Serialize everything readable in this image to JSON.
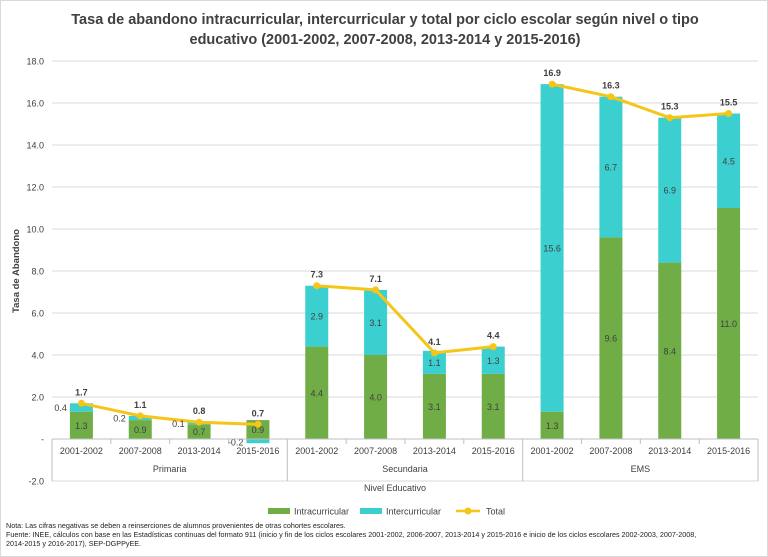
{
  "chart_data": {
    "type": "bar",
    "title_lines": [
      "Tasa de abandono intracurricular, intercurricular y total por ciclo escolar según nivel o tipo",
      "educativo (2001-2002, 2007-2008, 2013-2014 y 2015-2016)"
    ],
    "ylabel": "Tasa de Abandono",
    "xlabel": "Nivel Educativo",
    "ylim": [
      -2.0,
      18.0
    ],
    "yticks": [
      "-2.0",
      "-",
      "2.0",
      "4.0",
      "6.0",
      "8.0",
      "10.0",
      "12.0",
      "14.0",
      "16.0",
      "18.0"
    ],
    "ytick_values": [
      -2,
      0,
      2,
      4,
      6,
      8,
      10,
      12,
      14,
      16,
      18
    ],
    "groups": [
      {
        "name": "Primaria",
        "categories": [
          "2001-2002",
          "2007-2008",
          "2013-2014",
          "2015-2016"
        ]
      },
      {
        "name": "Secundaria",
        "categories": [
          "2001-2002",
          "2007-2008",
          "2013-2014",
          "2015-2016"
        ]
      },
      {
        "name": "EMS",
        "categories": [
          "2001-2002",
          "2007-2008",
          "2013-2014",
          "2015-2016"
        ]
      }
    ],
    "series": [
      {
        "name": "Intracurricular",
        "color": "#70ad47",
        "values": [
          1.3,
          0.9,
          0.7,
          0.9,
          4.4,
          4.0,
          3.1,
          3.1,
          1.3,
          9.6,
          8.4,
          11.0
        ],
        "labels": [
          "1.3",
          "0.9",
          "0.7",
          "0.9",
          "4.4",
          "4.0",
          "3.1",
          "3.1",
          "1.3",
          "9.6",
          "8.4",
          "11.0"
        ]
      },
      {
        "name": "Intercurricular",
        "color": "#3ccfcf",
        "values": [
          0.4,
          0.2,
          0.1,
          -0.2,
          2.9,
          3.1,
          1.1,
          1.3,
          15.6,
          6.7,
          6.9,
          4.5
        ],
        "labels": [
          "0.4",
          "0.2",
          "0.1",
          "-0.2",
          "2.9",
          "3.1",
          "1.1",
          "1.3",
          "15.6",
          "6.7",
          "6.9",
          "4.5"
        ]
      },
      {
        "name": "Total",
        "color": "#f5c518",
        "type": "line",
        "values": [
          1.7,
          1.1,
          0.8,
          0.7,
          7.3,
          7.1,
          4.1,
          4.4,
          16.9,
          16.3,
          15.3,
          15.5
        ],
        "labels": [
          "1.7",
          "1.1",
          "0.8",
          "0.7",
          "7.3",
          "7.1",
          "4.1",
          "4.4",
          "16.9",
          "16.3",
          "15.3",
          "15.5"
        ]
      }
    ],
    "legend": {
      "placement": "bottom",
      "items": [
        "Intracurricular",
        "Intercurricular",
        "Total"
      ]
    },
    "grid": true
  },
  "note_lines": [
    "Nota: Las cifras negativas se deben a reinserciones de alumnos provenientes de otras cohortes escolares.",
    "Fuente: INEE, cálculos con base en las Estadísticas continuas del formato 911 (inicio y fin de los ciclos escolares 2001-2002,  2006-2007, 2013-2014 y 2015-2016  e inicio de los ciclos escolares 2002-2003,  2007-2008,",
    "2014-2015  y 2016-2017), SEP-DGPPyEE."
  ]
}
